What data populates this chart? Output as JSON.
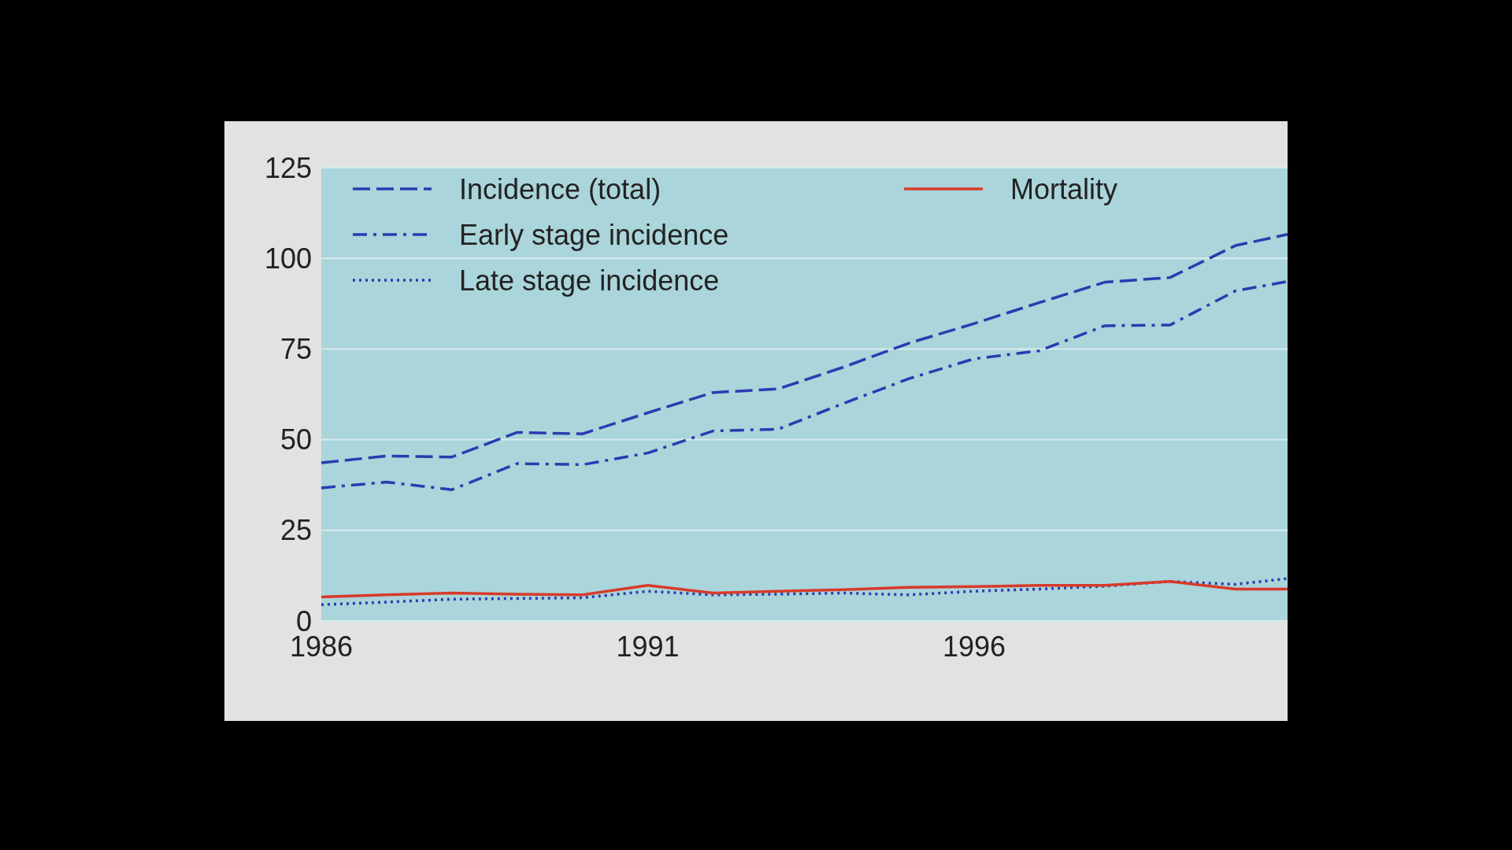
{
  "chart_data": {
    "type": "line",
    "x": [
      1986,
      1987,
      1988,
      1989,
      1990,
      1991,
      1992,
      1993,
      1994,
      1995,
      1996,
      1997,
      1998,
      1999,
      2000,
      2000.8
    ],
    "xlim": [
      1986,
      2000.8
    ],
    "xticks": [
      1986,
      1991,
      1996
    ],
    "ylim": [
      0,
      125
    ],
    "yticks": [
      0,
      25,
      50,
      75,
      100,
      125
    ],
    "grid": "y",
    "legend": "top left",
    "series": [
      {
        "name": "Incidence (total)",
        "color": "#2a3cb0",
        "line_style": "dashed",
        "values": [
          43.6,
          45.5,
          45.2,
          52,
          51.6,
          57.4,
          63,
          64,
          70,
          76.6,
          82,
          87.8,
          93.4,
          94.7,
          103.5,
          106.6
        ]
      },
      {
        "name": "Early stage incidence",
        "color": "#2a3cb0",
        "line_style": "dashdot",
        "values": [
          36.7,
          38.3,
          36.2,
          43.4,
          43.1,
          46.3,
          52.4,
          52.9,
          60,
          66.8,
          72.3,
          74.5,
          81.4,
          81.6,
          91,
          93.6
        ]
      },
      {
        "name": "Late stage incidence",
        "color": "#2a3cb0",
        "line_style": "dotted",
        "values": [
          4.5,
          5.2,
          6,
          6.2,
          6.4,
          8.2,
          7.2,
          7.4,
          7.7,
          7.2,
          8.2,
          8.8,
          9.6,
          10.9,
          10.1,
          11.7
        ]
      },
      {
        "name": "Mortality",
        "color": "#d83a2a",
        "line_style": "solid",
        "values": [
          6.6,
          7.2,
          7.7,
          7.4,
          7.2,
          9.8,
          7.7,
          8.2,
          8.6,
          9.3,
          9.5,
          9.8,
          9.8,
          10.9,
          8.8,
          8.8
        ]
      }
    ]
  }
}
